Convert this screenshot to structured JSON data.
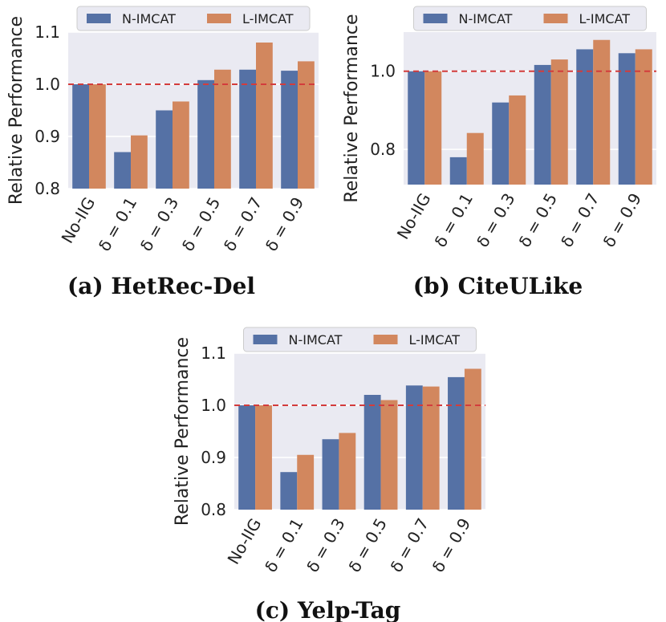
{
  "colors": {
    "N-IMCAT": "#5571a5",
    "L-IMCAT": "#d2875e",
    "plot_bg": "#eaeaf2",
    "grid": "#ffffff",
    "ref_line": "#d33c3c"
  },
  "chart_data": [
    {
      "type": "bar",
      "title": "(a) HetRec-Del",
      "xlabel": "",
      "ylabel": "Relative Performance",
      "categories": [
        "No-IIG",
        "δ = 0.1",
        "δ = 0.3",
        "δ = 0.5",
        "δ = 0.7",
        "δ = 0.9"
      ],
      "series": [
        {
          "name": "N-IMCAT",
          "values": [
            1.0,
            0.87,
            0.95,
            1.008,
            1.028,
            1.026
          ]
        },
        {
          "name": "L-IMCAT",
          "values": [
            1.0,
            0.902,
            0.967,
            1.028,
            1.08,
            1.044
          ]
        }
      ],
      "ylim": [
        0.8,
        1.1
      ],
      "yticks": [
        0.8,
        0.9,
        1.0,
        1.1
      ],
      "ytick_labels": [
        "0.8",
        "0.9",
        "1.0",
        "1.1"
      ],
      "reference_line": 1.0,
      "legend": [
        "N-IMCAT",
        "L-IMCAT"
      ],
      "legend_position": "top"
    },
    {
      "type": "bar",
      "title": "(b) CiteULike",
      "xlabel": "",
      "ylabel": "Relative Performance",
      "categories": [
        "No-IIG",
        "δ = 0.1",
        "δ = 0.3",
        "δ = 0.5",
        "δ = 0.7",
        "δ = 0.9"
      ],
      "series": [
        {
          "name": "N-IMCAT",
          "values": [
            1.0,
            0.78,
            0.92,
            1.016,
            1.056,
            1.046
          ]
        },
        {
          "name": "L-IMCAT",
          "values": [
            1.0,
            0.842,
            0.938,
            1.03,
            1.08,
            1.056
          ]
        }
      ],
      "ylim": [
        0.71,
        1.1
      ],
      "yticks": [
        0.8,
        1.0
      ],
      "ytick_labels": [
        "0.8",
        "1.0"
      ],
      "reference_line": 1.0,
      "legend": [
        "N-IMCAT",
        "L-IMCAT"
      ],
      "legend_position": "top"
    },
    {
      "type": "bar",
      "title": "(c) Yelp-Tag",
      "xlabel": "",
      "ylabel": "Relative Performance",
      "categories": [
        "No-IIG",
        "δ = 0.1",
        "δ = 0.3",
        "δ = 0.5",
        "δ = 0.7",
        "δ = 0.9"
      ],
      "series": [
        {
          "name": "N-IMCAT",
          "values": [
            1.0,
            0.872,
            0.935,
            1.02,
            1.038,
            1.054
          ]
        },
        {
          "name": "L-IMCAT",
          "values": [
            1.0,
            0.905,
            0.947,
            1.01,
            1.036,
            1.07
          ]
        }
      ],
      "ylim": [
        0.8,
        1.1
      ],
      "yticks": [
        0.8,
        0.9,
        1.0,
        1.1
      ],
      "ytick_labels": [
        "0.8",
        "0.9",
        "1.0",
        "1.1"
      ],
      "reference_line": 1.0,
      "legend": [
        "N-IMCAT",
        "L-IMCAT"
      ],
      "legend_position": "top"
    }
  ]
}
